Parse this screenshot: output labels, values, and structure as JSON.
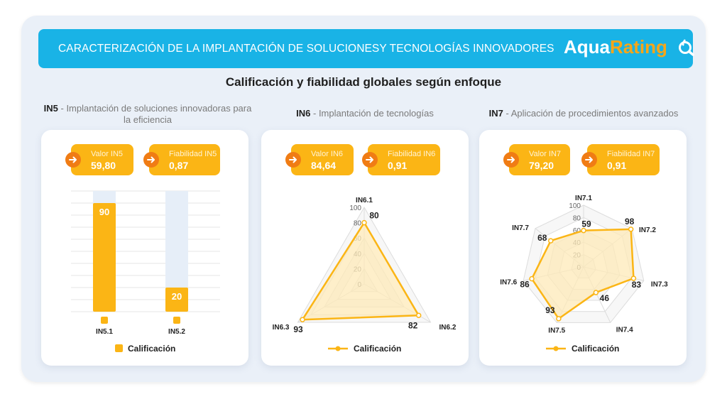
{
  "header": {
    "title": "CARACTERIZACIÓN DE LA IMPLANTACIÓN DE SOLUCIONESY TECNOLOGÍAS INNOVADORES",
    "logo_part1": "Aqua",
    "logo_part2": "Rating"
  },
  "subtitle": "Calificación y fiabilidad globales según enfoque",
  "colors": {
    "accent": "#fbb515",
    "arrow": "#f07c14",
    "banner": "#19b3e6",
    "fill": "#fde9b8"
  },
  "sections": [
    {
      "code": "IN5",
      "title": " - Implantación de soluciones innovadoras para la eficiencia",
      "value_label": "Valor IN5",
      "value": "59,80",
      "reliability_label": "Fiabilidad IN5",
      "reliability": "0,87",
      "legend": "Calificación"
    },
    {
      "code": "IN6",
      "title": " - Implantación de tecnologías",
      "value_label": "Valor IN6",
      "value": "84,64",
      "reliability_label": "Fiabilidad IN6",
      "reliability": "0,91",
      "legend": "Calificación"
    },
    {
      "code": "IN7",
      "title": " - Aplicación de procedimientos avanzados",
      "value_label": "Valor IN7",
      "value": "79,20",
      "reliability_label": "Fiabilidad IN7",
      "reliability": "0,91",
      "legend": "Calificación"
    }
  ],
  "chart_data": [
    {
      "type": "bar",
      "categories": [
        "IN5.1",
        "IN5.2"
      ],
      "values": [
        90,
        20
      ],
      "ylim": [
        0,
        100
      ],
      "legend": [
        "Calificación"
      ]
    },
    {
      "type": "radar",
      "categories": [
        "IN6.1",
        "IN6.2",
        "IN6.3"
      ],
      "values": [
        80,
        82,
        93
      ],
      "rlim": [
        0,
        100
      ],
      "ticks": [
        "0",
        "20",
        "40",
        "60",
        "80",
        "100"
      ],
      "legend": [
        "Calificación"
      ]
    },
    {
      "type": "radar",
      "categories": [
        "IN7.1",
        "IN7.2",
        "IN7.3",
        "IN7.4",
        "IN7.5",
        "IN7.6",
        "IN7.7"
      ],
      "values": [
        59,
        98,
        83,
        46,
        93,
        86,
        68
      ],
      "rlim": [
        0,
        100
      ],
      "ticks": [
        "0",
        "20",
        "40",
        "60",
        "80",
        "100"
      ],
      "legend": [
        "Calificación"
      ]
    }
  ]
}
